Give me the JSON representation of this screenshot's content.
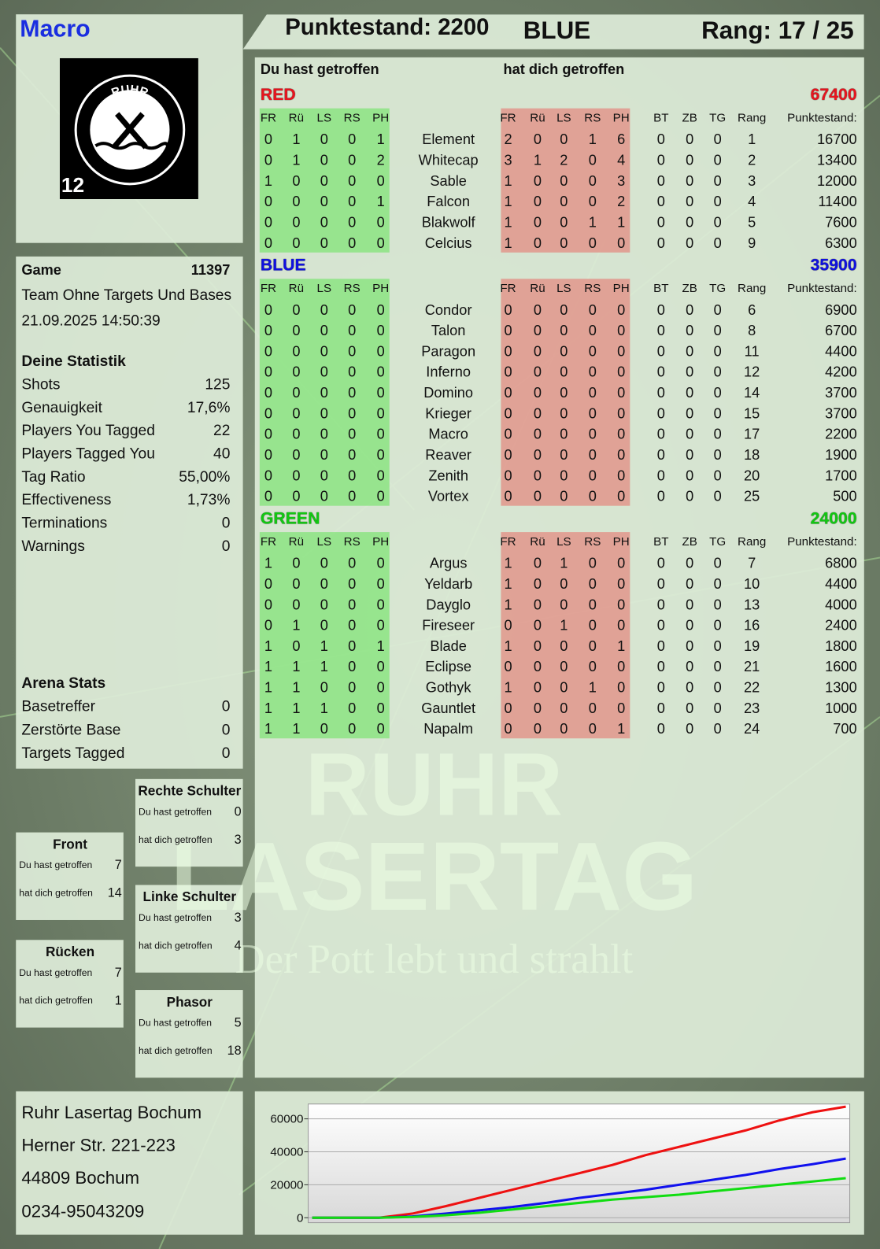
{
  "header": {
    "player": "Macro",
    "score": "Punktestand: 2200",
    "team": "BLUE",
    "rank": "Rang: 17 / 25"
  },
  "logo": {
    "top": "RUHR",
    "bottom": "LASERTAG",
    "badge": "12"
  },
  "game": {
    "label": "Game",
    "id": "11397",
    "mode": "Team Ohne Targets Und Bases",
    "date": "21.09.2025 14:50:39"
  },
  "statistik": {
    "title": "Deine Statistik",
    "rows": [
      [
        "Shots",
        "125"
      ],
      [
        "Genauigkeit",
        "17,6%"
      ],
      [
        "Players You Tagged",
        "22"
      ],
      [
        "Players Tagged You",
        "40"
      ],
      [
        "Tag Ratio",
        "55,00%"
      ],
      [
        "Effectiveness",
        "1,73%"
      ],
      [
        "Terminations",
        "0"
      ],
      [
        "Warnings",
        "0"
      ]
    ]
  },
  "arena": {
    "title": "Arena Stats",
    "rows": [
      [
        "Basetreffer",
        "0"
      ],
      [
        "Zerstörte Base",
        "0"
      ],
      [
        "Targets Tagged",
        "0"
      ]
    ]
  },
  "zones": {
    "labels": [
      "Du hast getroffen",
      "hat dich getroffen"
    ],
    "items": [
      {
        "title": "Rechte Schulter",
        "values": [
          "0",
          "3"
        ]
      },
      {
        "title": "Front",
        "values": [
          "7",
          "14"
        ]
      },
      {
        "title": "Linke Schulter",
        "values": [
          "3",
          "4"
        ]
      },
      {
        "title": "Rücken",
        "values": [
          "7",
          "1"
        ]
      },
      {
        "title": "Phasor",
        "values": [
          "5",
          "18"
        ]
      }
    ]
  },
  "table": {
    "hit_by_you": "Du hast getroffen",
    "hit_you": "hat dich getroffen",
    "hit_columns": [
      "FR",
      "Rü",
      "LS",
      "RS",
      "PH"
    ],
    "stat_columns": [
      "BT",
      "ZB",
      "TG",
      "Rang",
      "Punktestand:"
    ],
    "teams": [
      {
        "name": "RED",
        "color": "#e8141e",
        "total": "67400",
        "rows": [
          {
            "you": [
              0,
              1,
              0,
              0,
              1
            ],
            "name": "Element",
            "them": [
              2,
              0,
              0,
              1,
              6
            ],
            "stats": [
              0,
              0,
              0,
              1,
              16700
            ]
          },
          {
            "you": [
              0,
              1,
              0,
              0,
              2
            ],
            "name": "Whitecap",
            "them": [
              3,
              1,
              2,
              0,
              4
            ],
            "stats": [
              0,
              0,
              0,
              2,
              13400
            ]
          },
          {
            "you": [
              1,
              0,
              0,
              0,
              0
            ],
            "name": "Sable",
            "them": [
              1,
              0,
              0,
              0,
              3
            ],
            "stats": [
              0,
              0,
              0,
              3,
              12000
            ]
          },
          {
            "you": [
              0,
              0,
              0,
              0,
              1
            ],
            "name": "Falcon",
            "them": [
              1,
              0,
              0,
              0,
              2
            ],
            "stats": [
              0,
              0,
              0,
              4,
              11400
            ]
          },
          {
            "you": [
              0,
              0,
              0,
              0,
              0
            ],
            "name": "Blakwolf",
            "them": [
              1,
              0,
              0,
              1,
              1
            ],
            "stats": [
              0,
              0,
              0,
              5,
              7600
            ]
          },
          {
            "you": [
              0,
              0,
              0,
              0,
              0
            ],
            "name": "Celcius",
            "them": [
              1,
              0,
              0,
              0,
              0
            ],
            "stats": [
              0,
              0,
              0,
              9,
              6300
            ]
          }
        ]
      },
      {
        "name": "BLUE",
        "color": "#1010e0",
        "total": "35900",
        "rows": [
          {
            "you": [
              0,
              0,
              0,
              0,
              0
            ],
            "name": "Condor",
            "them": [
              0,
              0,
              0,
              0,
              0
            ],
            "stats": [
              0,
              0,
              0,
              6,
              6900
            ]
          },
          {
            "you": [
              0,
              0,
              0,
              0,
              0
            ],
            "name": "Talon",
            "them": [
              0,
              0,
              0,
              0,
              0
            ],
            "stats": [
              0,
              0,
              0,
              8,
              6700
            ]
          },
          {
            "you": [
              0,
              0,
              0,
              0,
              0
            ],
            "name": "Paragon",
            "them": [
              0,
              0,
              0,
              0,
              0
            ],
            "stats": [
              0,
              0,
              0,
              11,
              4400
            ]
          },
          {
            "you": [
              0,
              0,
              0,
              0,
              0
            ],
            "name": "Inferno",
            "them": [
              0,
              0,
              0,
              0,
              0
            ],
            "stats": [
              0,
              0,
              0,
              12,
              4200
            ]
          },
          {
            "you": [
              0,
              0,
              0,
              0,
              0
            ],
            "name": "Domino",
            "them": [
              0,
              0,
              0,
              0,
              0
            ],
            "stats": [
              0,
              0,
              0,
              14,
              3700
            ]
          },
          {
            "you": [
              0,
              0,
              0,
              0,
              0
            ],
            "name": "Krieger",
            "them": [
              0,
              0,
              0,
              0,
              0
            ],
            "stats": [
              0,
              0,
              0,
              15,
              3700
            ]
          },
          {
            "you": [
              0,
              0,
              0,
              0,
              0
            ],
            "name": "Macro",
            "them": [
              0,
              0,
              0,
              0,
              0
            ],
            "stats": [
              0,
              0,
              0,
              17,
              2200
            ]
          },
          {
            "you": [
              0,
              0,
              0,
              0,
              0
            ],
            "name": "Reaver",
            "them": [
              0,
              0,
              0,
              0,
              0
            ],
            "stats": [
              0,
              0,
              0,
              18,
              1900
            ]
          },
          {
            "you": [
              0,
              0,
              0,
              0,
              0
            ],
            "name": "Zenith",
            "them": [
              0,
              0,
              0,
              0,
              0
            ],
            "stats": [
              0,
              0,
              0,
              20,
              1700
            ]
          },
          {
            "you": [
              0,
              0,
              0,
              0,
              0
            ],
            "name": "Vortex",
            "them": [
              0,
              0,
              0,
              0,
              0
            ],
            "stats": [
              0,
              0,
              0,
              25,
              500
            ]
          }
        ]
      },
      {
        "name": "GREEN",
        "color": "#12c812",
        "total": "24000",
        "rows": [
          {
            "you": [
              1,
              0,
              0,
              0,
              0
            ],
            "name": "Argus",
            "them": [
              1,
              0,
              1,
              0,
              0
            ],
            "stats": [
              0,
              0,
              0,
              7,
              6800
            ]
          },
          {
            "you": [
              0,
              0,
              0,
              0,
              0
            ],
            "name": "Yeldarb",
            "them": [
              1,
              0,
              0,
              0,
              0
            ],
            "stats": [
              0,
              0,
              0,
              10,
              4400
            ]
          },
          {
            "you": [
              0,
              0,
              0,
              0,
              0
            ],
            "name": "Dayglo",
            "them": [
              1,
              0,
              0,
              0,
              0
            ],
            "stats": [
              0,
              0,
              0,
              13,
              4000
            ]
          },
          {
            "you": [
              0,
              1,
              0,
              0,
              0
            ],
            "name": "Fireseer",
            "them": [
              0,
              0,
              1,
              0,
              0
            ],
            "stats": [
              0,
              0,
              0,
              16,
              2400
            ]
          },
          {
            "you": [
              1,
              0,
              1,
              0,
              1
            ],
            "name": "Blade",
            "them": [
              1,
              0,
              0,
              0,
              1
            ],
            "stats": [
              0,
              0,
              0,
              19,
              1800
            ]
          },
          {
            "you": [
              1,
              1,
              1,
              0,
              0
            ],
            "name": "Eclipse",
            "them": [
              0,
              0,
              0,
              0,
              0
            ],
            "stats": [
              0,
              0,
              0,
              21,
              1600
            ]
          },
          {
            "you": [
              1,
              1,
              0,
              0,
              0
            ],
            "name": "Gothyk",
            "them": [
              1,
              0,
              0,
              1,
              0
            ],
            "stats": [
              0,
              0,
              0,
              22,
              1300
            ]
          },
          {
            "you": [
              1,
              1,
              1,
              0,
              0
            ],
            "name": "Gauntlet",
            "them": [
              0,
              0,
              0,
              0,
              0
            ],
            "stats": [
              0,
              0,
              0,
              23,
              1000
            ]
          },
          {
            "you": [
              1,
              1,
              0,
              0,
              0
            ],
            "name": "Napalm",
            "them": [
              0,
              0,
              0,
              0,
              1
            ],
            "stats": [
              0,
              0,
              0,
              24,
              700
            ]
          }
        ]
      }
    ]
  },
  "address": [
    "Ruhr Lasertag Bochum",
    "Herner Str. 221-223",
    "44809 Bochum",
    "0234-95043209"
  ],
  "watermark": [
    "RUHR",
    "LASERTAG",
    "Der Pott lebt und strahlt"
  ],
  "chart_data": {
    "type": "line",
    "ylim": [
      -3000,
      69000
    ],
    "yticks": [
      0,
      20000,
      40000,
      60000
    ],
    "grid": true,
    "series": [
      {
        "name": "RED",
        "color": "#ee1111",
        "values": [
          0,
          0,
          0,
          2500,
          7000,
          12000,
          17000,
          22000,
          27000,
          32000,
          38000,
          43000,
          48000,
          53000,
          59000,
          64000,
          67400
        ]
      },
      {
        "name": "BLUE",
        "color": "#1111ee",
        "values": [
          0,
          0,
          0,
          800,
          2500,
          4500,
          6500,
          9000,
          12000,
          14500,
          17000,
          20000,
          23000,
          26000,
          29500,
          32500,
          35900
        ]
      },
      {
        "name": "GREEN",
        "color": "#11dd11",
        "values": [
          0,
          0,
          0,
          500,
          1500,
          3000,
          5000,
          7000,
          9000,
          11000,
          12500,
          14000,
          16000,
          18000,
          20000,
          22000,
          24000
        ]
      }
    ]
  }
}
